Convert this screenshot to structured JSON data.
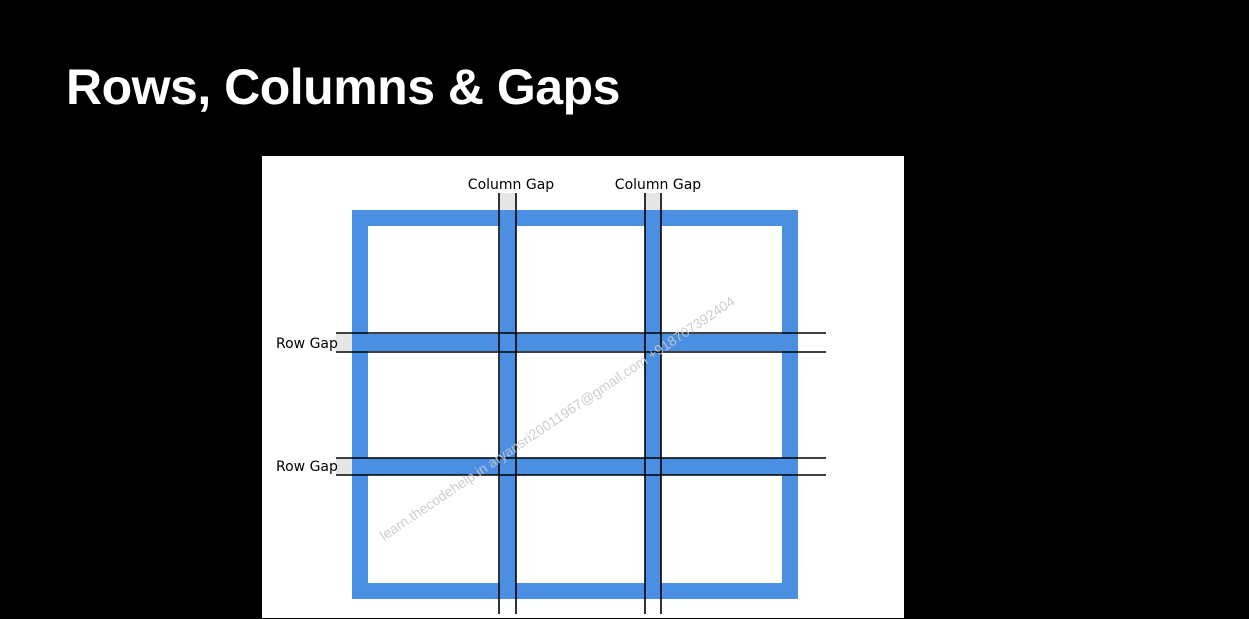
{
  "slide": {
    "title": "Rows, Columns & Gaps"
  },
  "diagram": {
    "column_gap_labels": [
      "Column Gap",
      "Column Gap"
    ],
    "row_gap_labels": [
      "Row Gap",
      "Row Gap"
    ],
    "watermark": "learn.thecodehelp.in aryansri20011967@gmail.com +918707392404",
    "colors": {
      "grid_blue": "#4a8fe2",
      "gap_highlight": "#e6e6e6",
      "guide_line": "#000000",
      "background": "#ffffff",
      "slide_background": "#000000",
      "watermark": "#c8c8c8"
    }
  }
}
